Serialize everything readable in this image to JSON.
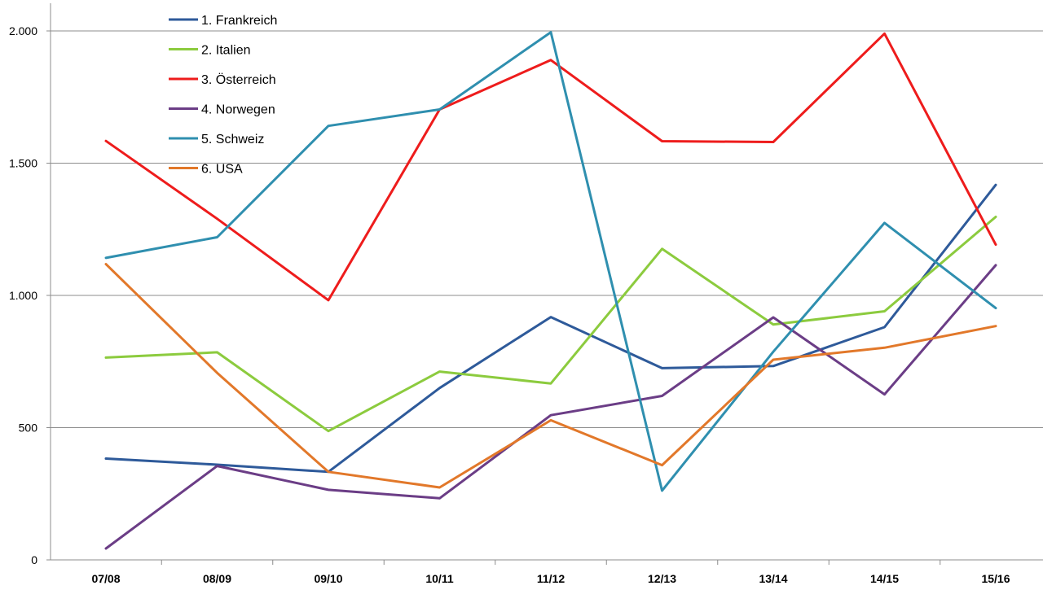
{
  "chart_data": {
    "type": "line",
    "categories": [
      "07/08",
      "08/09",
      "09/10",
      "10/11",
      "11/12",
      "12/13",
      "13/14",
      "14/15",
      "15/16"
    ],
    "ylim": [
      0,
      2000
    ],
    "yticks": [
      0,
      500,
      1000,
      1500,
      2000
    ],
    "ytick_labels": [
      "0",
      "500",
      "1.000",
      "1.500",
      "2.000"
    ],
    "grid": "horizontal",
    "legend_position": "top-left",
    "series": [
      {
        "name": "1. Frankreich",
        "color": "#2E5A9A",
        "values": [
          383,
          360,
          333,
          650,
          918,
          725,
          733,
          880,
          1418
        ]
      },
      {
        "name": "2. Italien",
        "color": "#8CCB3E",
        "values": [
          765,
          785,
          487,
          712,
          667,
          1176,
          890,
          940,
          1297
        ]
      },
      {
        "name": "3. Österreich",
        "color": "#EE1C1C",
        "values": [
          1584,
          1290,
          982,
          1703,
          1890,
          1583,
          1580,
          1990,
          1192
        ]
      },
      {
        "name": "4. Norwegen",
        "color": "#6B3D86",
        "values": [
          43,
          355,
          265,
          233,
          547,
          620,
          917,
          626,
          1114
        ]
      },
      {
        "name": "5. Schweiz",
        "color": "#2F8FAF",
        "values": [
          1142,
          1220,
          1641,
          1703,
          1995,
          262,
          787,
          1274,
          952
        ]
      },
      {
        "name": "6. USA",
        "color": "#E2782A",
        "values": [
          1118,
          707,
          333,
          274,
          528,
          358,
          757,
          802,
          884
        ]
      }
    ]
  }
}
